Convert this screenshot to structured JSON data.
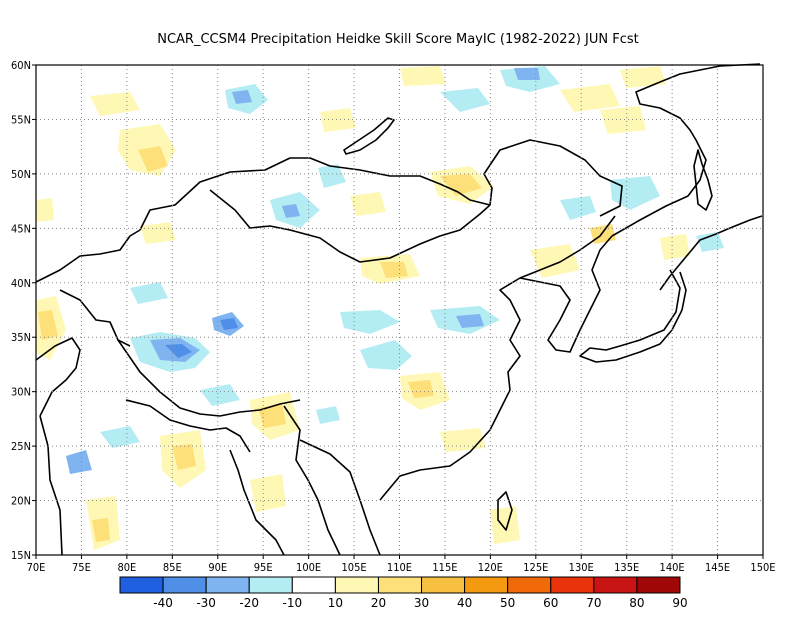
{
  "title": "NCAR_CCSM4  Precipitation Heidke Skill Score MayIC (1982-2022) JUN Fcst",
  "map": {
    "lon_range": [
      70,
      150
    ],
    "lat_range": [
      15,
      60
    ],
    "lon_ticks": [
      "70E",
      "75E",
      "80E",
      "85E",
      "90E",
      "95E",
      "100E",
      "105E",
      "110E",
      "115E",
      "120E",
      "125E",
      "130E",
      "135E",
      "140E",
      "145E",
      "150E"
    ],
    "lat_ticks": [
      "60N",
      "55N",
      "50N",
      "45N",
      "40N",
      "35N",
      "30N",
      "25N",
      "20N",
      "15N"
    ],
    "grid": "dotted"
  },
  "colorbar": {
    "colors": [
      "#1f5fe0",
      "#4f8fe8",
      "#80b4f0",
      "#b4ecf4",
      "#ffffff",
      "#fff8b4",
      "#fde07a",
      "#f8c040",
      "#f59a10",
      "#f06a0a",
      "#e8320a",
      "#c81414",
      "#a00808"
    ],
    "labels": [
      "-40",
      "-30",
      "-20",
      "-10",
      "10",
      "20",
      "30",
      "40",
      "50",
      "60",
      "70",
      "80",
      "90"
    ]
  },
  "icons": {
    "coastline": "coastline-lines"
  }
}
